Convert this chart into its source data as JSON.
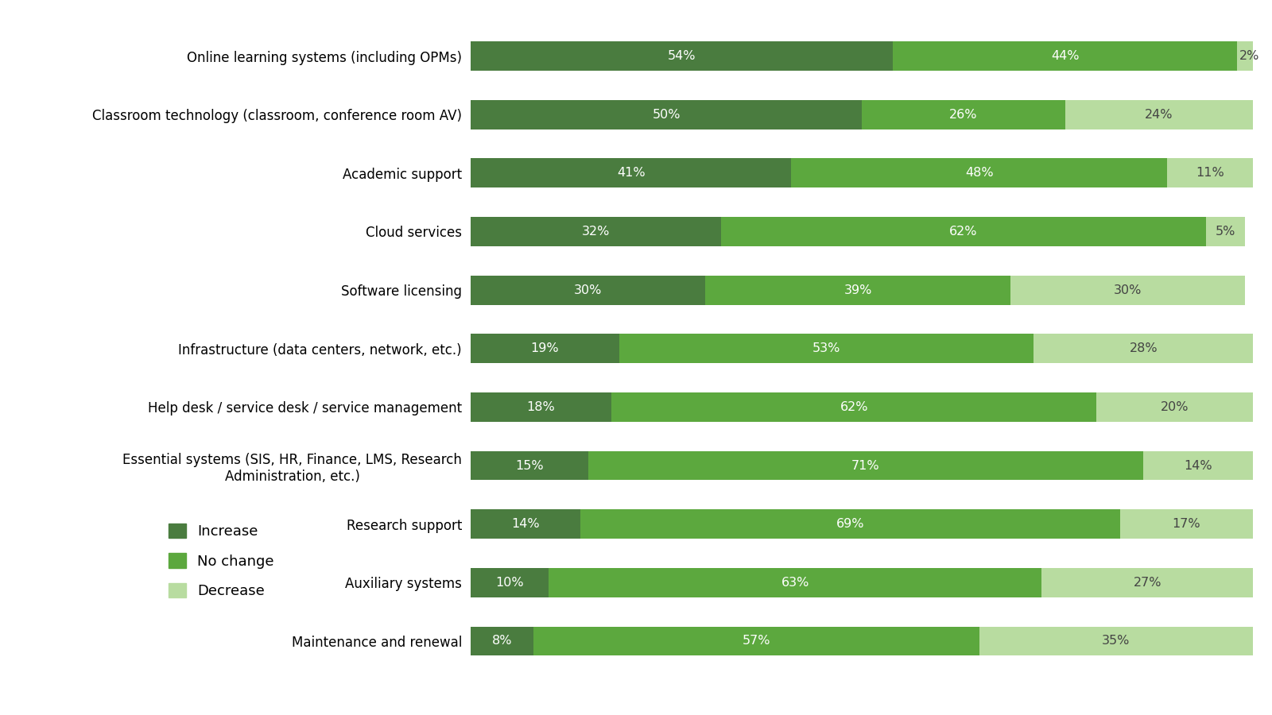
{
  "categories": [
    "Online learning systems (including OPMs)",
    "Classroom technology (classroom, conference room AV)",
    "Academic support",
    "Cloud services",
    "Software licensing",
    "Infrastructure (data centers, network, etc.)",
    "Help desk / service desk / service management",
    "Essential systems (SIS, HR, Finance, LMS, Research\nAdministration, etc.)",
    "Research support",
    "Auxiliary systems",
    "Maintenance and renewal"
  ],
  "increase": [
    54,
    50,
    41,
    32,
    30,
    19,
    18,
    15,
    14,
    10,
    8
  ],
  "no_change": [
    44,
    26,
    48,
    62,
    39,
    53,
    62,
    71,
    69,
    63,
    57
  ],
  "decrease": [
    2,
    24,
    11,
    5,
    30,
    28,
    20,
    14,
    17,
    27,
    35
  ],
  "color_increase": "#4a7c3f",
  "color_no_change": "#5ca83e",
  "color_decrease": "#b8dca0",
  "legend_labels": [
    "Increase",
    "No change",
    "Decrease"
  ],
  "bar_height": 0.5,
  "figsize": [
    16,
    9
  ],
  "dpi": 100,
  "background_color": "#ffffff",
  "label_fontsize": 12,
  "bar_label_fontsize": 11.5
}
